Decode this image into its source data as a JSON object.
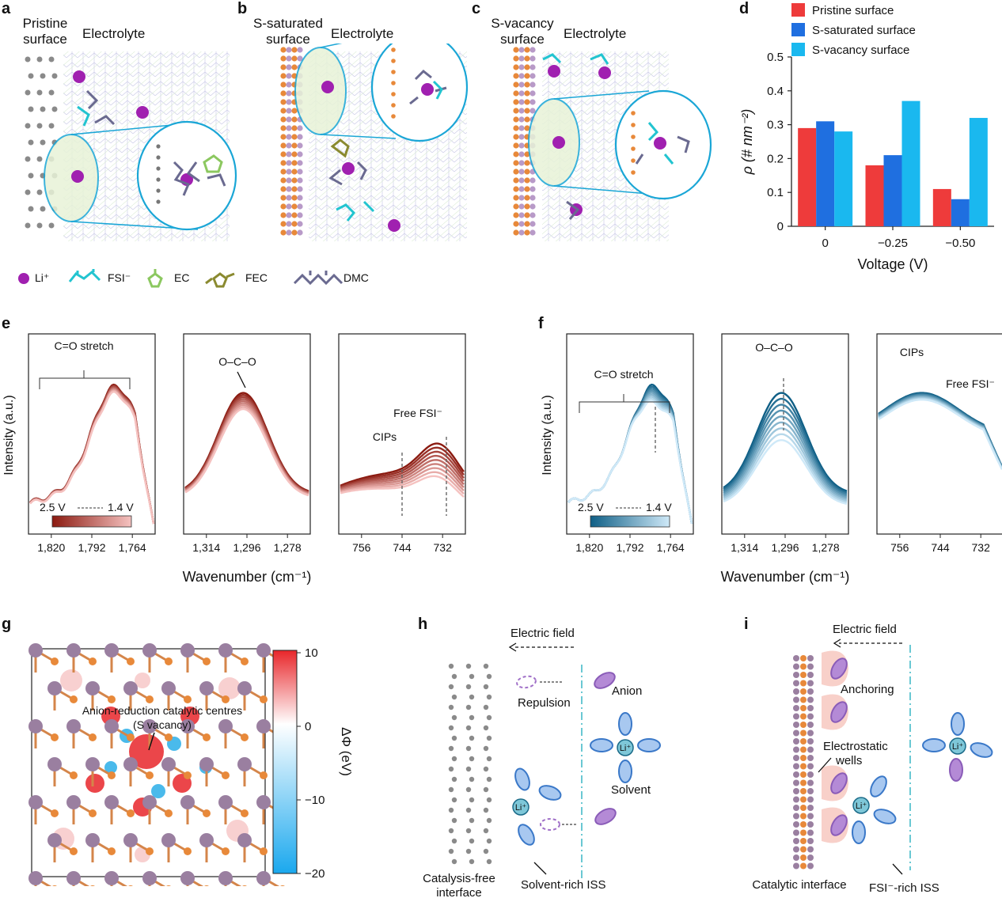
{
  "panels": {
    "a": {
      "label": "a",
      "surface": "Pristine surface",
      "surface_l1": "Pristine",
      "surface_l2": "surface",
      "electrolyte": "Electrolyte"
    },
    "b": {
      "label": "b",
      "surface_l1": "S-saturated",
      "surface_l2": "surface",
      "electrolyte": "Electrolyte"
    },
    "c": {
      "label": "c",
      "surface_l1": "S-vacancy",
      "surface_l2": "surface",
      "electrolyte": "Electrolyte"
    },
    "d": {
      "label": "d"
    },
    "e": {
      "label": "e"
    },
    "f": {
      "label": "f"
    },
    "g": {
      "label": "g"
    },
    "h": {
      "label": "h"
    },
    "i": {
      "label": "i"
    }
  },
  "legend_molecules": [
    {
      "name": "Li⁺",
      "color": "#a020b0"
    },
    {
      "name": "FSI⁻",
      "color": "#22c4d0"
    },
    {
      "name": "EC",
      "color": "#8cc860"
    },
    {
      "name": "FEC",
      "color": "#8a8a30"
    },
    {
      "name": "DMC",
      "color": "#6a6a90"
    }
  ],
  "chart_data": [
    {
      "type": "bar",
      "panel": "d",
      "categories": [
        "0",
        "−0.25",
        "−0.50"
      ],
      "series": [
        {
          "name": "Pristine surface",
          "color": "#ee3b3b",
          "values": [
            0.29,
            0.18,
            0.11
          ]
        },
        {
          "name": "S-saturated surface",
          "color": "#1f6fe0",
          "values": [
            0.31,
            0.21,
            0.08
          ]
        },
        {
          "name": "S-vacancy surface",
          "color": "#1ab8ef",
          "values": [
            0.28,
            0.37,
            0.32
          ]
        }
      ],
      "xlabel": "Voltage (V)",
      "ylabel": "ρ (# nm⁻²)",
      "ylim": [
        0,
        0.5
      ],
      "yticks": [
        "0",
        "0.1",
        "0.2",
        "0.3",
        "0.4",
        "0.5"
      ]
    },
    {
      "type": "line",
      "panel": "e",
      "xlabel": "Wavenumber (cm⁻¹)",
      "ylabel": "Intensity (a.u.)",
      "voltage_range": {
        "start": "2.5 V",
        "end": "1.4 V"
      },
      "subplots": [
        {
          "xticks": [
            "1,820",
            "1,792",
            "1,764"
          ],
          "annotation": "C=O stretch"
        },
        {
          "xticks": [
            "1,314",
            "1,296",
            "1,278"
          ],
          "annotation": "O–C–O"
        },
        {
          "xticks": [
            "756",
            "744",
            "732"
          ],
          "annotations": [
            "CIPs",
            "Free FSI⁻"
          ]
        }
      ]
    },
    {
      "type": "line",
      "panel": "f",
      "xlabel": "Wavenumber (cm⁻¹)",
      "ylabel": "Intensity (a.u.)",
      "voltage_range": {
        "start": "2.5 V",
        "end": "1.4 V"
      },
      "subplots": [
        {
          "xticks": [
            "1,820",
            "1,792",
            "1,764"
          ],
          "annotation": "C=O stretch"
        },
        {
          "xticks": [
            "1,314",
            "1,296",
            "1,278"
          ],
          "annotation": "O–C–O"
        },
        {
          "xticks": [
            "756",
            "744",
            "732"
          ],
          "annotations": [
            "CIPs",
            "Free FSI⁻"
          ]
        }
      ]
    },
    {
      "type": "heatmap",
      "panel": "g",
      "annotation_l1": "Anion-reduction catalytic centres",
      "annotation_l2": "(S vacancy)",
      "colorbar_label": "ΔΦ (eV)",
      "colorbar_ticks": [
        "10",
        "0",
        "−10",
        "−20"
      ],
      "colorbar_range": [
        -20,
        10
      ]
    }
  ],
  "h": {
    "electric_field": "Electric field",
    "repulsion": "Repulsion",
    "anion": "Anion",
    "solvent": "Solvent",
    "li": "Li⁺",
    "interface_l1": "Catalysis-free",
    "interface_l2": "interface",
    "iss": "Solvent-rich ISS"
  },
  "i": {
    "electric_field": "Electric field",
    "anchoring": "Anchoring",
    "wells_l1": "Electrostatic",
    "wells_l2": "wells",
    "li": "Li⁺",
    "interface": "Catalytic interface",
    "iss": "FSI⁻-rich ISS"
  }
}
